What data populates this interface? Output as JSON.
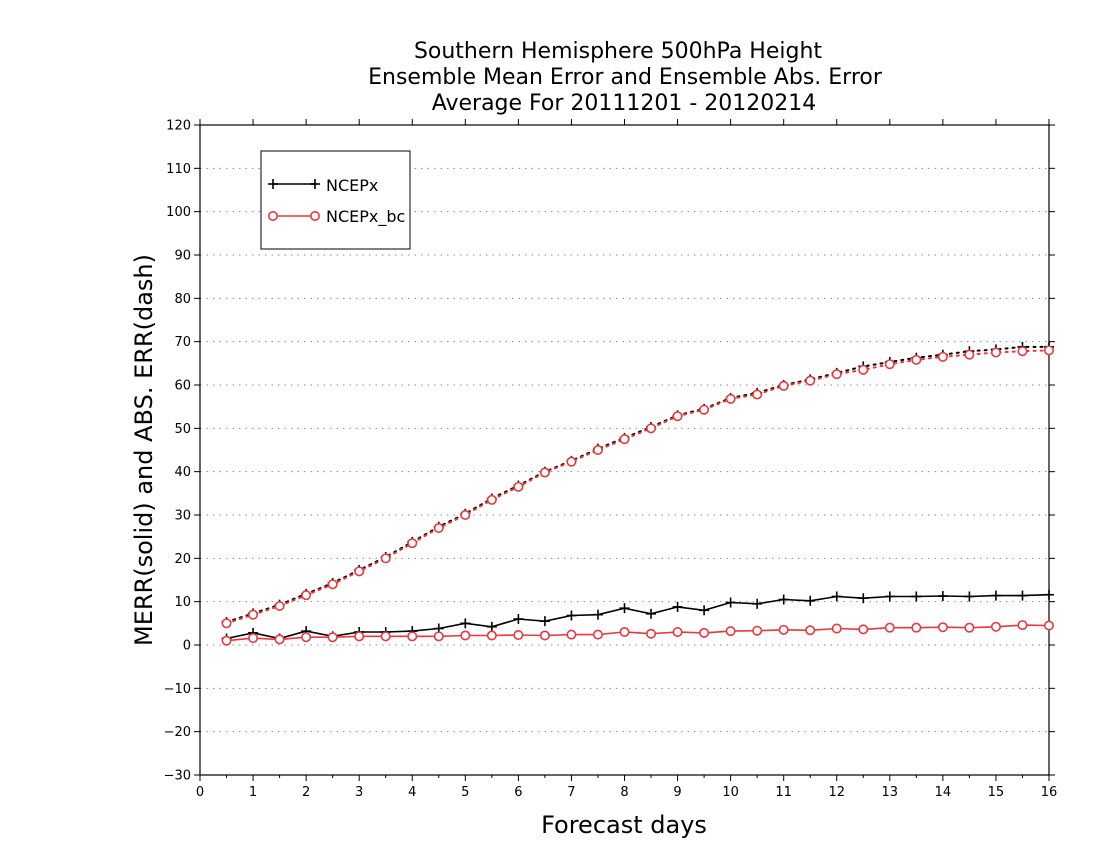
{
  "chart_data": {
    "type": "line",
    "title_lines": [
      "Southern Hemisphere 500hPa Height",
      "Ensemble Mean Error and Ensemble Abs. Error",
      "Average For 20111201 - 20120214"
    ],
    "xlabel": "Forecast days",
    "ylabel": "MERR(solid) and ABS. ERR(dash)",
    "xlim": [
      0,
      16
    ],
    "ylim": [
      -30,
      120
    ],
    "x_ticks": [
      0,
      1,
      2,
      3,
      4,
      5,
      6,
      7,
      8,
      9,
      10,
      11,
      12,
      13,
      14,
      15,
      16
    ],
    "y_ticks": [
      -30,
      -20,
      -10,
      0,
      10,
      20,
      30,
      40,
      50,
      60,
      70,
      80,
      90,
      100,
      110,
      120
    ],
    "grid": "horizontal dotted",
    "legend_position": "top-left",
    "x": [
      0.5,
      1,
      1.5,
      2,
      2.5,
      3,
      3.5,
      4,
      4.5,
      5,
      5.5,
      6,
      6.5,
      7,
      7.5,
      8,
      8.5,
      9,
      9.5,
      10,
      10.5,
      11,
      11.5,
      12,
      12.5,
      13,
      13.5,
      14,
      14.5,
      15,
      15.5,
      16
    ],
    "series": [
      {
        "name": "NCEPx",
        "color": "#000000",
        "marker": "plus",
        "merr": [
          1.5,
          2.8,
          1.5,
          3.2,
          2.0,
          3.0,
          3.0,
          3.2,
          3.8,
          5.0,
          4.2,
          6.0,
          5.5,
          6.8,
          7.0,
          8.5,
          7.2,
          8.8,
          8.0,
          9.8,
          9.5,
          10.5,
          10.2,
          11.2,
          10.8,
          11.2,
          11.2,
          11.3,
          11.2,
          11.4,
          11.4,
          11.6
        ],
        "abs_err": [
          5.3,
          7.3,
          9.3,
          11.8,
          14.3,
          17.3,
          20.3,
          23.8,
          27.3,
          30.3,
          33.8,
          36.8,
          40.0,
          42.5,
          45.3,
          47.8,
          50.3,
          53.0,
          54.5,
          57.0,
          58.2,
          60.0,
          61.3,
          62.8,
          64.3,
          65.3,
          66.3,
          67.0,
          67.8,
          68.2,
          68.8,
          68.8
        ]
      },
      {
        "name": "NCEPx_bc",
        "color": "#e8383d",
        "marker": "circle",
        "merr": [
          1.0,
          1.6,
          1.3,
          1.8,
          1.8,
          2.0,
          2.0,
          2.0,
          2.0,
          2.2,
          2.2,
          2.3,
          2.2,
          2.4,
          2.4,
          3.0,
          2.6,
          3.0,
          2.8,
          3.2,
          3.3,
          3.5,
          3.4,
          3.8,
          3.6,
          4.0,
          4.0,
          4.1,
          4.0,
          4.2,
          4.6,
          4.5
        ],
        "abs_err": [
          5.0,
          7.0,
          9.0,
          11.5,
          14.0,
          17.0,
          20.0,
          23.5,
          27.0,
          30.0,
          33.5,
          36.5,
          39.8,
          42.3,
          45.0,
          47.5,
          50.0,
          52.8,
          54.3,
          56.8,
          57.8,
          59.8,
          61.0,
          62.5,
          63.5,
          64.8,
          65.8,
          66.5,
          67.0,
          67.5,
          67.8,
          68.0
        ]
      }
    ]
  }
}
